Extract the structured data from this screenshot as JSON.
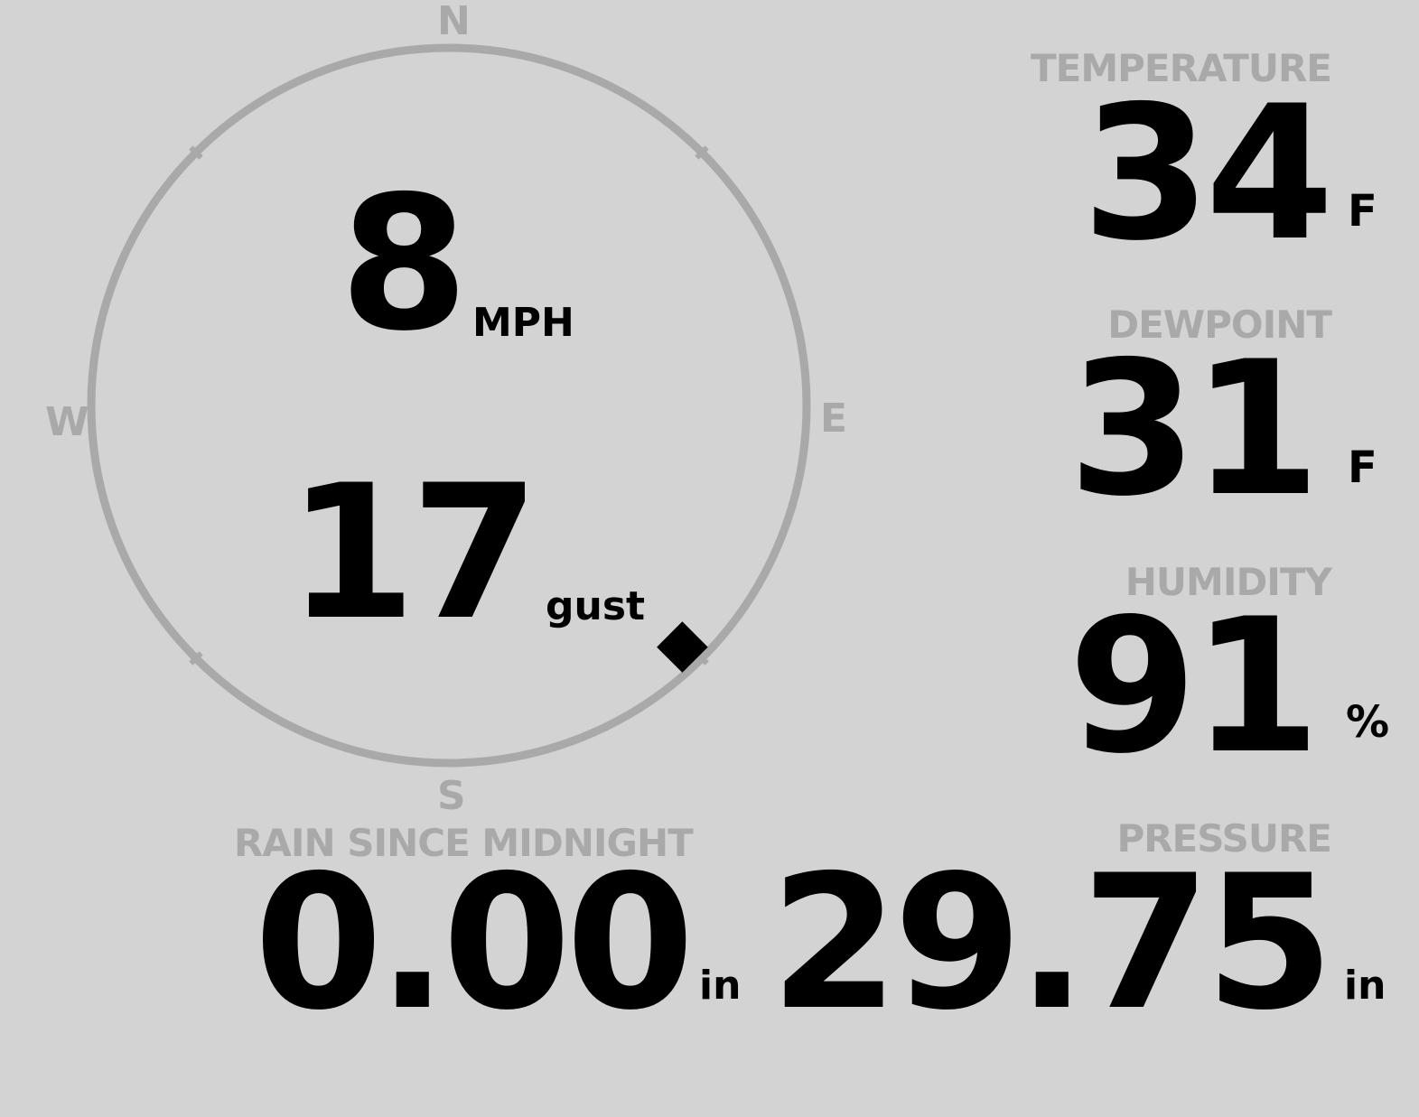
{
  "wind": {
    "compass": {
      "north": "N",
      "south": "S",
      "east": "E",
      "west": "W"
    },
    "speed": "8",
    "speed_unit": "MPH",
    "gust": "17",
    "gust_unit": "gust",
    "direction_degrees": 136,
    "ring_color": "#a9a9a9"
  },
  "temperature": {
    "label": "TEMPERATURE",
    "value": "34",
    "unit": "F"
  },
  "dewpoint": {
    "label": "DEWPOINT",
    "value": "31",
    "unit": "F"
  },
  "humidity": {
    "label": "HUMIDITY",
    "value": "91",
    "unit": "%"
  },
  "pressure": {
    "label": "PRESSURE",
    "value": "29.75",
    "unit": "in"
  },
  "rain": {
    "label": "RAIN SINCE MIDNIGHT",
    "value": "0.00",
    "unit": "in"
  }
}
